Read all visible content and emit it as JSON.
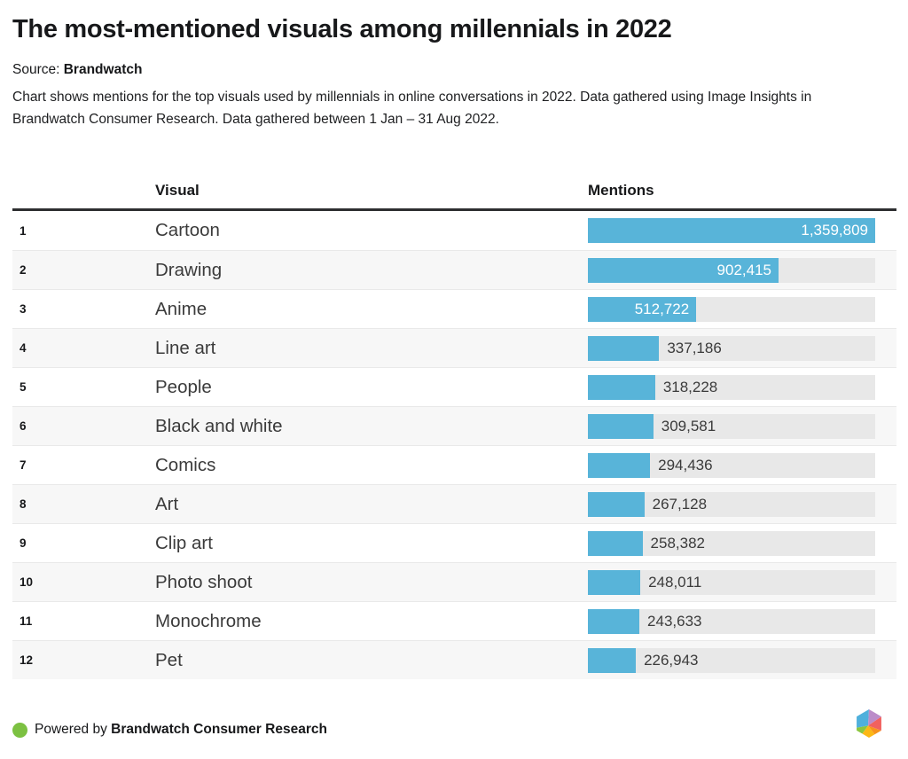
{
  "header": {
    "title": "The most-mentioned visuals among millennials in 2022",
    "source_label": "Source:",
    "source_value": "Brandwatch",
    "description": "Chart shows mentions for the top visuals used by millennials in online conversations in 2022. Data gathered using Image Insights in Brandwatch Consumer Research. Data gathered between 1 Jan – 31 Aug 2022."
  },
  "table": {
    "columns": {
      "visual": "Visual",
      "mentions": "Mentions"
    }
  },
  "chart_data": {
    "type": "bar",
    "orientation": "horizontal",
    "title": "The most-mentioned visuals among millennials in 2022",
    "categories": [
      "Cartoon",
      "Drawing",
      "Anime",
      "Line art",
      "People",
      "Black and white",
      "Comics",
      "Art",
      "Clip art",
      "Photo shoot",
      "Monochrome",
      "Pet"
    ],
    "values": [
      1359809,
      902415,
      512722,
      337186,
      318228,
      309581,
      294436,
      267128,
      258382,
      248011,
      243633,
      226943
    ],
    "value_labels": [
      "1,359,809",
      "902,415",
      "512,722",
      "337,186",
      "318,228",
      "309,581",
      "294,436",
      "267,128",
      "258,382",
      "248,011",
      "243,633",
      "226,943"
    ],
    "ranks": [
      "1",
      "2",
      "3",
      "4",
      "5",
      "6",
      "7",
      "8",
      "9",
      "10",
      "11",
      "12"
    ],
    "xlabel": "Mentions",
    "ylabel": "Visual",
    "xlim": [
      0,
      1359809
    ],
    "grid": false,
    "legend": false,
    "bar_color": "#58b4d9",
    "track_color": "#e8e8e8",
    "label_inside_threshold": 0.3
  },
  "footer": {
    "powered_by": "Powered by",
    "brand": "Brandwatch Consumer Research",
    "dot_color": "#7cc142",
    "logo_name": "brandwatch-logo",
    "logo_colors": {
      "blue": "#4fb0dc",
      "purple": "#bb8cc9",
      "red": "#f1615f",
      "orange": "#f7941d",
      "yellow": "#fcb815",
      "green": "#8cc63f"
    }
  }
}
